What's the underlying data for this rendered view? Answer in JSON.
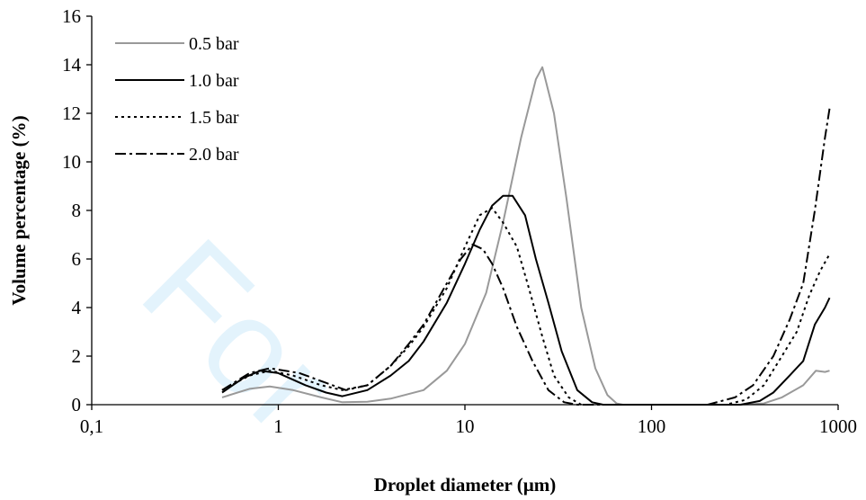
{
  "chart_data": {
    "type": "line",
    "title": "",
    "xlabel": "Droplet diameter (µm)",
    "ylabel": "Volume percentage (%)",
    "x_scale": "log",
    "xlim": [
      0.1,
      1000
    ],
    "ylim": [
      0,
      16
    ],
    "x_ticks": [
      "0,1",
      "1",
      "10",
      "100",
      "1000"
    ],
    "y_ticks": [
      "0",
      "2",
      "4",
      "6",
      "8",
      "10",
      "12",
      "14",
      "16"
    ],
    "grid": false,
    "legend_position": "top-left",
    "watermark": "For",
    "series": [
      {
        "name": "0.5 bar",
        "color": "#999999",
        "dash": "solid",
        "points": [
          [
            0.5,
            0.3
          ],
          [
            0.7,
            0.65
          ],
          [
            0.9,
            0.75
          ],
          [
            1.2,
            0.6
          ],
          [
            1.7,
            0.3
          ],
          [
            2.2,
            0.1
          ],
          [
            3,
            0.12
          ],
          [
            4,
            0.25
          ],
          [
            6,
            0.6
          ],
          [
            8,
            1.4
          ],
          [
            10,
            2.5
          ],
          [
            13,
            4.6
          ],
          [
            16,
            7.5
          ],
          [
            20,
            11
          ],
          [
            24,
            13.4
          ],
          [
            26,
            13.9
          ],
          [
            30,
            12
          ],
          [
            35,
            8.5
          ],
          [
            42,
            4
          ],
          [
            50,
            1.5
          ],
          [
            58,
            0.4
          ],
          [
            65,
            0.05
          ],
          [
            70,
            0
          ],
          [
            300,
            0
          ],
          [
            400,
            0.05
          ],
          [
            500,
            0.3
          ],
          [
            650,
            0.8
          ],
          [
            760,
            1.4
          ],
          [
            850,
            1.35
          ],
          [
            900,
            1.4
          ]
        ]
      },
      {
        "name": "1.0 bar",
        "color": "#000000",
        "dash": "solid",
        "points": [
          [
            0.5,
            0.5
          ],
          [
            0.65,
            1.1
          ],
          [
            0.8,
            1.4
          ],
          [
            1,
            1.3
          ],
          [
            1.4,
            0.8
          ],
          [
            1.8,
            0.5
          ],
          [
            2.2,
            0.35
          ],
          [
            3,
            0.6
          ],
          [
            4,
            1.2
          ],
          [
            5,
            1.8
          ],
          [
            6,
            2.6
          ],
          [
            8,
            4.2
          ],
          [
            10,
            5.8
          ],
          [
            12,
            7.2
          ],
          [
            14,
            8.2
          ],
          [
            16,
            8.6
          ],
          [
            18,
            8.6
          ],
          [
            21,
            7.8
          ],
          [
            24,
            6
          ],
          [
            28,
            4.2
          ],
          [
            33,
            2.2
          ],
          [
            40,
            0.6
          ],
          [
            48,
            0.1
          ],
          [
            55,
            0
          ],
          [
            300,
            0
          ],
          [
            380,
            0.15
          ],
          [
            450,
            0.5
          ],
          [
            550,
            1.2
          ],
          [
            650,
            1.8
          ],
          [
            750,
            3.3
          ],
          [
            850,
            4
          ],
          [
            900,
            4.4
          ]
        ]
      },
      {
        "name": "1.5 bar",
        "color": "#000000",
        "dash": "dotted",
        "points": [
          [
            0.5,
            0.6
          ],
          [
            0.7,
            1.2
          ],
          [
            0.9,
            1.4
          ],
          [
            1.2,
            1.2
          ],
          [
            1.7,
            0.8
          ],
          [
            2.2,
            0.6
          ],
          [
            3,
            0.8
          ],
          [
            4,
            1.6
          ],
          [
            5,
            2.4
          ],
          [
            6,
            3.2
          ],
          [
            8,
            4.8
          ],
          [
            10,
            6.5
          ],
          [
            12,
            7.8
          ],
          [
            14,
            8.1
          ],
          [
            16,
            7.5
          ],
          [
            19,
            6.5
          ],
          [
            22,
            4.8
          ],
          [
            26,
            2.8
          ],
          [
            30,
            1.2
          ],
          [
            36,
            0.3
          ],
          [
            42,
            0
          ],
          [
            250,
            0
          ],
          [
            320,
            0.2
          ],
          [
            400,
            0.8
          ],
          [
            500,
            2
          ],
          [
            600,
            3
          ],
          [
            700,
            4.5
          ],
          [
            800,
            5.5
          ],
          [
            900,
            6.2
          ]
        ]
      },
      {
        "name": "2.0 bar",
        "color": "#000000",
        "dash": "dashdot",
        "points": [
          [
            0.5,
            0.6
          ],
          [
            0.7,
            1.3
          ],
          [
            0.9,
            1.5
          ],
          [
            1.3,
            1.3
          ],
          [
            1.8,
            0.9
          ],
          [
            2.3,
            0.6
          ],
          [
            3,
            0.8
          ],
          [
            4,
            1.6
          ],
          [
            5,
            2.5
          ],
          [
            6,
            3.3
          ],
          [
            8,
            5
          ],
          [
            9.5,
            6
          ],
          [
            11,
            6.6
          ],
          [
            12.5,
            6.4
          ],
          [
            14,
            5.8
          ],
          [
            16,
            4.8
          ],
          [
            19,
            3.2
          ],
          [
            23,
            1.8
          ],
          [
            28,
            0.6
          ],
          [
            34,
            0.1
          ],
          [
            40,
            0
          ],
          [
            200,
            0
          ],
          [
            280,
            0.3
          ],
          [
            350,
            0.8
          ],
          [
            450,
            2
          ],
          [
            550,
            3.5
          ],
          [
            650,
            5
          ],
          [
            750,
            8
          ],
          [
            850,
            11
          ],
          [
            900,
            12.2
          ]
        ]
      }
    ]
  }
}
